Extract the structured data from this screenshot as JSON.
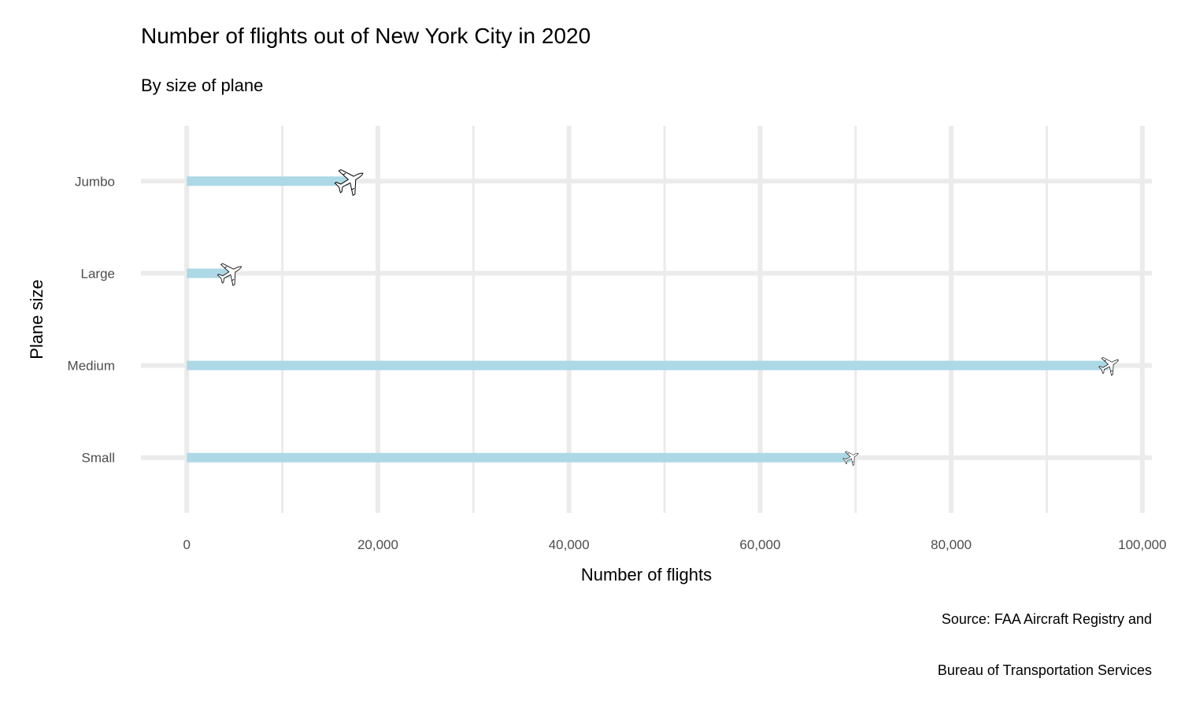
{
  "chart_data": {
    "type": "bar",
    "orientation": "horizontal",
    "title": "Number of flights out of New York City in 2020",
    "subtitle": "By size of plane",
    "xlabel": "Number of flights",
    "ylabel": "Plane size",
    "categories": [
      "Jumbo",
      "Large",
      "Medium",
      "Small"
    ],
    "values": [
      17000,
      4500,
      96500,
      69500
    ],
    "xlim": [
      -4800,
      101000
    ],
    "x_ticks": [
      0,
      20000,
      40000,
      60000,
      80000,
      100000
    ],
    "x_tick_labels": [
      "0",
      "20,000",
      "40,000",
      "60,000",
      "80,000",
      "100,000"
    ],
    "grid": true,
    "bar_color": "#add8e6",
    "grid_color": "#ebebeb",
    "marker_icon": "airplane-icon",
    "caption": [
      "Source: FAA Aircraft Registry and",
      "Bureau of Transportation Services"
    ]
  }
}
